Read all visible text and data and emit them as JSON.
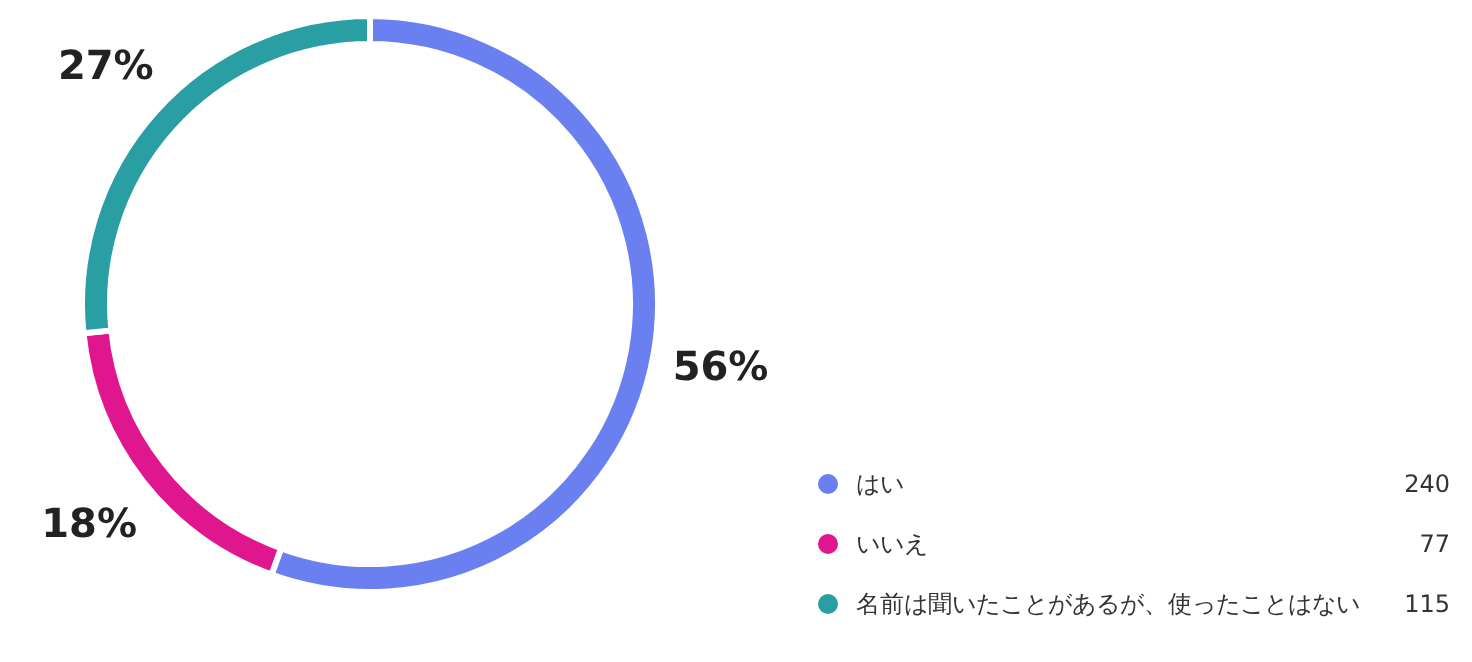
{
  "chart_data": {
    "type": "donut",
    "categories": [
      "はい",
      "いいえ",
      "名前は聞いたことがあるが、使ったことはない"
    ],
    "values": [
      240,
      77,
      115
    ],
    "colors": [
      "#6a80f0",
      "#e0168e",
      "#2a9fa3"
    ],
    "value_labels": [
      "240",
      "77",
      "115"
    ],
    "annotations": [
      "56%",
      "18%",
      "27%"
    ],
    "legend": "bottom right"
  }
}
